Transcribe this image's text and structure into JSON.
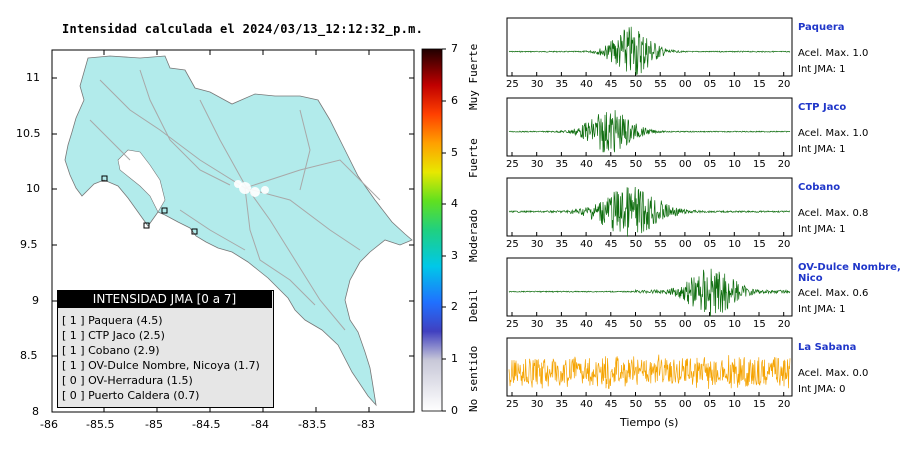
{
  "map": {
    "title": "Intensidad calculada el 2024/03/13_12:12:32_p.m.",
    "lat_ticks": [
      "11",
      "10.5",
      "10",
      "9.5",
      "9",
      "8.5",
      "8"
    ],
    "lon_ticks": [
      "-86",
      "-85.5",
      "-85",
      "-84.5",
      "-84",
      "-83.5",
      "-83"
    ],
    "land_color": "#b2ebeb",
    "legend": {
      "header": "INTENSIDAD JMA [0 a 7]",
      "items": [
        "[ 1 ]  Paquera (4.5)",
        "[ 1 ]  CTP Jaco (2.5)",
        "[ 1 ]  Cobano (2.9)",
        "[ 1 ]  OV-Dulce Nombre, Nicoya (1.7)",
        "[ 0 ]  OV-Herradura (1.5)",
        "[ 0 ]  Puerto Caldera (0.7)"
      ]
    }
  },
  "colorbar": {
    "ticks": [
      "7",
      "6",
      "5",
      "4",
      "3",
      "2",
      "1",
      "0"
    ],
    "categories": [
      "Muy Fuerte",
      "Fuerte",
      "Moderado",
      "Debil",
      "No sentido"
    ]
  },
  "waveforms": {
    "time_ticks": [
      "25",
      "30",
      "35",
      "40",
      "45",
      "50",
      "55",
      "00",
      "05",
      "10",
      "15",
      "20"
    ],
    "xlabel": "Tiempo (s)",
    "stations": [
      {
        "name": "Paquera",
        "accel": "Acel. Max. 1.0",
        "jma": "Int JMA: 1",
        "color": "#0f6e0f"
      },
      {
        "name": "CTP Jaco",
        "accel": "Acel. Max. 1.0",
        "jma": "Int JMA: 1",
        "color": "#0f6e0f"
      },
      {
        "name": "Cobano",
        "accel": "Acel. Max. 0.8",
        "jma": "Int JMA: 1",
        "color": "#0f6e0f"
      },
      {
        "name": "OV-Dulce Nombre, Nico",
        "accel": "Acel. Max. 0.6",
        "jma": "Int JMA: 1",
        "color": "#0f6e0f"
      },
      {
        "name": "La Sabana",
        "accel": "Acel. Max. 0.0",
        "jma": "Int JMA: 0",
        "color": "#f5a300"
      }
    ]
  }
}
